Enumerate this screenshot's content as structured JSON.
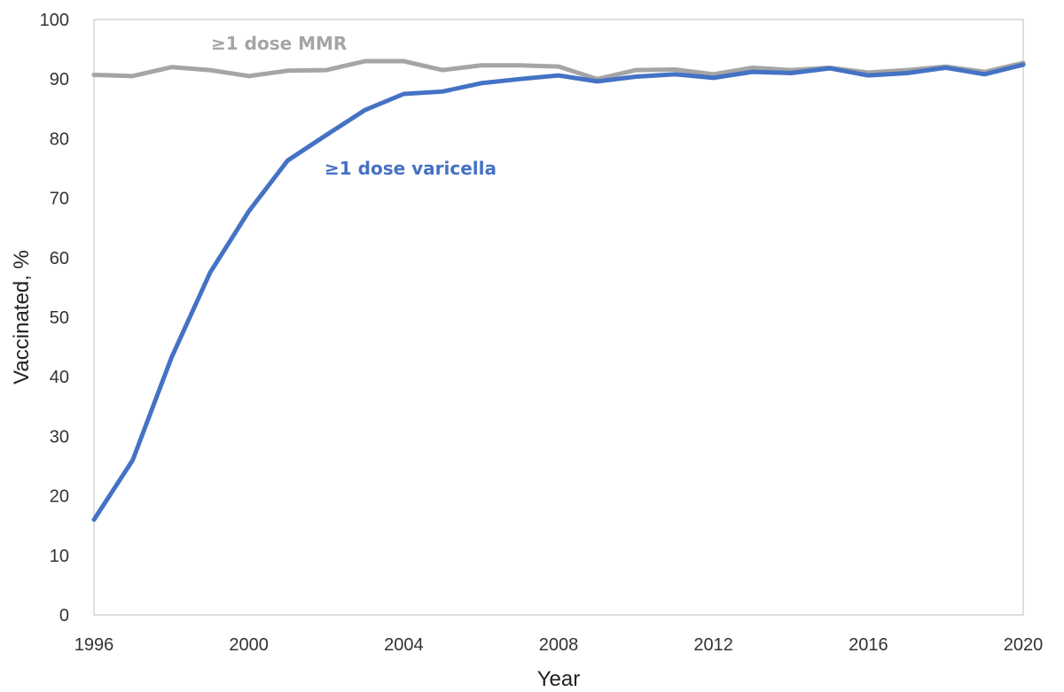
{
  "chart_data": {
    "type": "line",
    "title": "",
    "xlabel": "Year",
    "ylabel": "Vaccinated, %",
    "xlim": [
      1996,
      2020
    ],
    "ylim": [
      0,
      100
    ],
    "x_ticks": [
      1996,
      2000,
      2004,
      2008,
      2012,
      2016,
      2020
    ],
    "y_ticks": [
      0,
      10,
      20,
      30,
      40,
      50,
      60,
      70,
      80,
      90,
      100
    ],
    "grid": false,
    "legend": "inline",
    "x": [
      1996,
      1997,
      1998,
      1999,
      2000,
      2001,
      2002,
      2003,
      2004,
      2005,
      2006,
      2007,
      2008,
      2009,
      2010,
      2011,
      2012,
      2013,
      2014,
      2015,
      2016,
      2017,
      2018,
      2019,
      2020
    ],
    "series": [
      {
        "name": "≥1 dose MMR",
        "color": "#a5a5a5",
        "values": [
          90.7,
          90.5,
          92.0,
          91.5,
          90.5,
          91.4,
          91.5,
          93.0,
          93.0,
          91.5,
          92.3,
          92.3,
          92.1,
          90.0,
          91.5,
          91.6,
          90.8,
          91.9,
          91.5,
          91.9,
          91.1,
          91.5,
          92.1,
          91.2,
          92.7
        ]
      },
      {
        "name": "≥1 dose varicella",
        "color": "#4472c4",
        "values": [
          16.0,
          26.0,
          43.2,
          57.5,
          67.8,
          76.3,
          80.6,
          84.8,
          87.5,
          87.9,
          89.3,
          90.0,
          90.6,
          89.6,
          90.4,
          90.8,
          90.2,
          91.2,
          91.0,
          91.8,
          90.6,
          91.0,
          91.9,
          90.8,
          92.4
        ]
      }
    ]
  }
}
